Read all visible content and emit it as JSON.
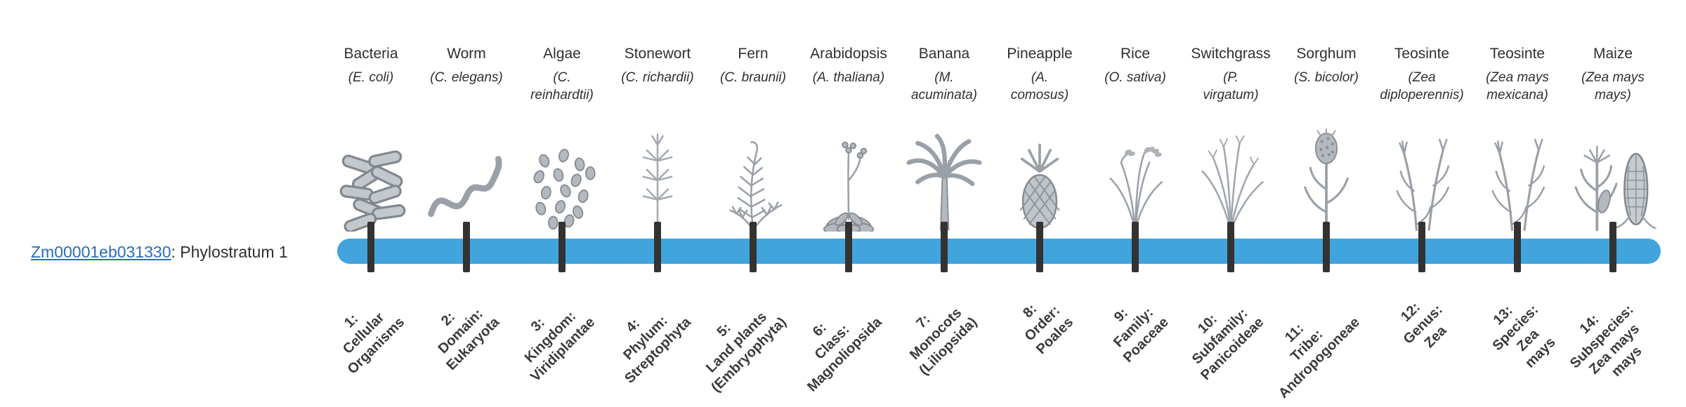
{
  "gene": {
    "link_text": "Zm00001eb031330",
    "suffix": ": Phylostratum 1"
  },
  "colors": {
    "bar": "#41A4DD",
    "tick": "#333333",
    "link": "#2A6DB5",
    "illustration": "#9AA0A7"
  },
  "organisms": [
    {
      "common_name": "Bacteria",
      "scientific_name": "(E. coli)",
      "icon": "bacteria",
      "tick_label": "1:\nCellular\nOrganisms"
    },
    {
      "common_name": "Worm",
      "scientific_name": "(C. elegans)",
      "icon": "worm",
      "tick_label": "2:\nDomain:\nEukaryota"
    },
    {
      "common_name": "Algae",
      "scientific_name": "(C.\nreinhardtii)",
      "icon": "algae",
      "tick_label": "3:\nKingdom:\nViridiplantae"
    },
    {
      "common_name": "Stonewort",
      "scientific_name": "(C. richardii)",
      "icon": "stonewort",
      "tick_label": "4:\nPhylum:\nStreptophyta"
    },
    {
      "common_name": "Fern",
      "scientific_name": "(C. braunii)",
      "icon": "fern",
      "tick_label": "5:\nLand plants\n(Embryophyta)"
    },
    {
      "common_name": "Arabidopsis",
      "scientific_name": "(A. thaliana)",
      "icon": "arabidopsis",
      "tick_label": "6:\nClass:\nMagnoliopsida"
    },
    {
      "common_name": "Banana",
      "scientific_name": "(M.\nacuminata)",
      "icon": "banana",
      "tick_label": "7:\nMonocots\n(Liliopsida)"
    },
    {
      "common_name": "Pineapple",
      "scientific_name": "(A.\ncomosus)",
      "icon": "pineapple",
      "tick_label": "8:\nOrder:\nPoales"
    },
    {
      "common_name": "Rice",
      "scientific_name": "(O. sativa)",
      "icon": "rice",
      "tick_label": "9:\nFamily:\nPoaceae"
    },
    {
      "common_name": "Switchgrass",
      "scientific_name": "(P.\nvirgatum)",
      "icon": "switchgrass",
      "tick_label": "10:\nSubfamily:\nPanicoideae"
    },
    {
      "common_name": "Sorghum",
      "scientific_name": "(S. bicolor)",
      "icon": "sorghum",
      "tick_label": "11:\nTribe:\nAndropogoneae"
    },
    {
      "common_name": "Teosinte",
      "scientific_name": "(Zea\ndiploperennis)",
      "icon": "teosinte",
      "tick_label": "12:\nGenus:\nZea"
    },
    {
      "common_name": "Teosinte",
      "scientific_name": "(Zea mays\nmexicana)",
      "icon": "teosinte",
      "tick_label": "13:\nSpecies:\nZea\nmays"
    },
    {
      "common_name": "Maize",
      "scientific_name": "(Zea mays\nmays)",
      "icon": "maize",
      "tick_label": "14:\nSubspecies:\nZea mays\nmays"
    }
  ]
}
